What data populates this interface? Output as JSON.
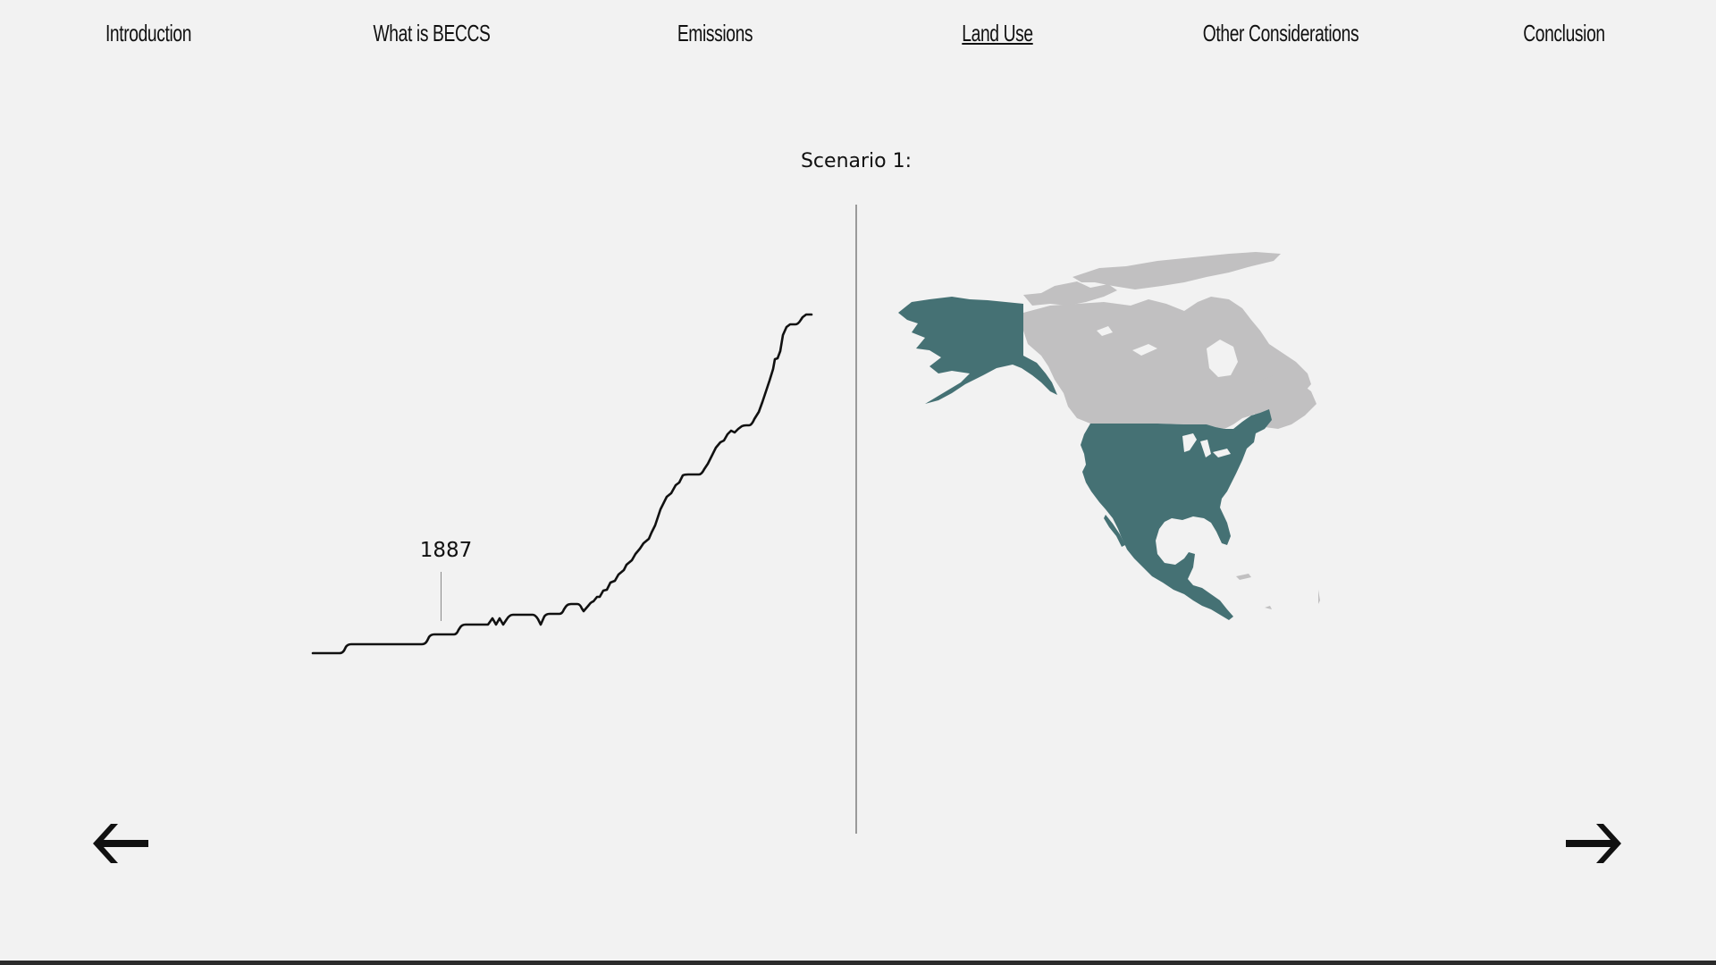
{
  "nav": {
    "items": [
      {
        "label": "Introduction",
        "active": false
      },
      {
        "label": "What is BECCS",
        "active": false
      },
      {
        "label": "Emissions",
        "active": false
      },
      {
        "label": "Land Use",
        "active": true
      },
      {
        "label": "Other Considerations",
        "active": false
      },
      {
        "label": "Conclusion",
        "active": false
      }
    ]
  },
  "scenario": {
    "title": "Scenario 1:"
  },
  "timeline": {
    "marker_year": "1887"
  },
  "map": {
    "highlight_color": "#457174",
    "base_color": "#c1c0c1",
    "regions": [
      "Alaska",
      "Canada",
      "United States",
      "Mexico",
      "Central America"
    ],
    "highlighted_regions": [
      "Alaska",
      "United States",
      "Mexico",
      "Central America"
    ]
  },
  "controls": {
    "prev_icon": "arrow-left-icon",
    "next_icon": "arrow-right-icon"
  },
  "colors": {
    "background": "#f2f2f2",
    "line": "#111111",
    "divider": "#9a9a9a"
  }
}
